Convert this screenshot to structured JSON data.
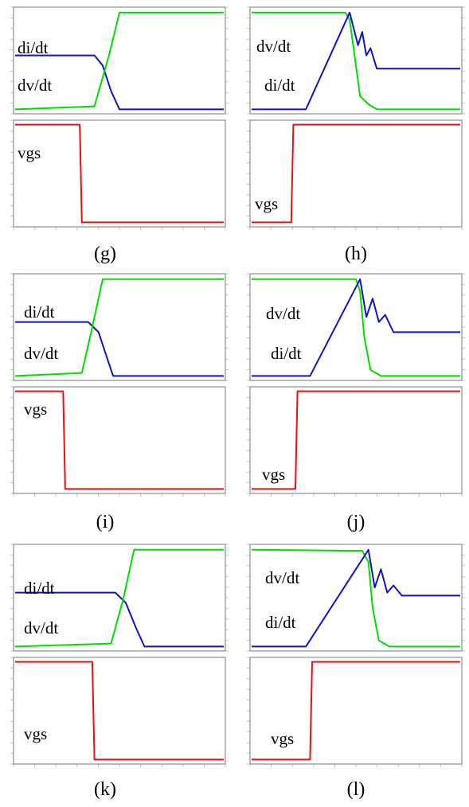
{
  "colors": {
    "green": "#00dd00",
    "blue": "#1111cc",
    "red": "#e81010",
    "frame": "#777777",
    "grid_text": "#9a9a9a"
  },
  "panels": [
    {
      "id": "g",
      "label": "(g)",
      "labels": {
        "a": "di/dt",
        "b": "dv/dt",
        "vgs": "vgs"
      }
    },
    {
      "id": "h",
      "label": "(h)",
      "labels": {
        "a": "dv/dt",
        "b": "di/dt",
        "vgs": "vgs"
      }
    },
    {
      "id": "i",
      "label": "(i)",
      "labels": {
        "a": "di/dt",
        "b": "dv/dt",
        "vgs": "vgs"
      }
    },
    {
      "id": "j",
      "label": "(j)",
      "labels": {
        "a": "dv/dt",
        "b": "di/dt",
        "vgs": "vgs"
      }
    },
    {
      "id": "k",
      "label": "(k)",
      "labels": {
        "a": "di/dt",
        "b": "dv/dt",
        "vgs": "vgs"
      }
    },
    {
      "id": "l",
      "label": "(l)",
      "labels": {
        "a": "dv/dt",
        "b": "di/dt",
        "vgs": "vgs"
      }
    }
  ],
  "chart_data": [
    {
      "type": "line",
      "panel": "g",
      "xlim": [
        0,
        1
      ],
      "ylim": [
        0,
        1
      ],
      "series": [
        {
          "name": "di/dt",
          "x": [
            0,
            0.38,
            0.42,
            0.46,
            0.5,
            1
          ],
          "y": [
            0.55,
            0.55,
            0.45,
            0.2,
            0.02,
            0.02
          ]
        },
        {
          "name": "dv/dt",
          "x": [
            0,
            0.38,
            0.45,
            0.5,
            1
          ],
          "y": [
            0.02,
            0.05,
            0.55,
            0.97,
            0.97
          ]
        },
        {
          "name": "vgs",
          "x": [
            0,
            0.31,
            0.32,
            1
          ],
          "y": [
            0.98,
            0.98,
            0.02,
            0.02
          ]
        }
      ]
    },
    {
      "type": "line",
      "panel": "h",
      "xlim": [
        0,
        1
      ],
      "ylim": [
        0,
        1
      ],
      "series": [
        {
          "name": "dv/dt",
          "x": [
            0,
            0.45,
            0.47,
            0.49,
            0.52,
            0.56,
            0.6,
            1
          ],
          "y": [
            0.97,
            0.97,
            0.9,
            0.6,
            0.15,
            0.07,
            0.02,
            0.02
          ]
        },
        {
          "name": "di/dt",
          "x": [
            0,
            0.26,
            0.47,
            0.51,
            0.53,
            0.55,
            0.57,
            0.6,
            1
          ],
          "y": [
            0.02,
            0.02,
            0.97,
            0.65,
            0.78,
            0.55,
            0.62,
            0.42,
            0.42
          ]
        },
        {
          "name": "vgs",
          "x": [
            0,
            0.19,
            0.2,
            1
          ],
          "y": [
            0.02,
            0.02,
            0.98,
            0.98
          ]
        }
      ]
    },
    {
      "type": "line",
      "panel": "i",
      "xlim": [
        0,
        1
      ],
      "ylim": [
        0,
        1
      ],
      "series": [
        {
          "name": "di/dt",
          "x": [
            0,
            0.35,
            0.4,
            0.44,
            0.47,
            1
          ],
          "y": [
            0.55,
            0.55,
            0.45,
            0.2,
            0.02,
            0.02
          ]
        },
        {
          "name": "dv/dt",
          "x": [
            0,
            0.32,
            0.37,
            0.42,
            0.45,
            1
          ],
          "y": [
            0.02,
            0.05,
            0.5,
            0.97,
            0.97,
            0.97
          ]
        },
        {
          "name": "vgs",
          "x": [
            0,
            0.23,
            0.24,
            1
          ],
          "y": [
            0.98,
            0.98,
            0.02,
            0.02
          ]
        }
      ]
    },
    {
      "type": "line",
      "panel": "j",
      "xlim": [
        0,
        1
      ],
      "ylim": [
        0,
        1
      ],
      "series": [
        {
          "name": "dv/dt",
          "x": [
            0,
            0.5,
            0.52,
            0.54,
            0.57,
            0.62,
            1
          ],
          "y": [
            0.97,
            0.97,
            0.85,
            0.4,
            0.08,
            0.02,
            0.02
          ]
        },
        {
          "name": "di/dt",
          "x": [
            0,
            0.28,
            0.52,
            0.55,
            0.58,
            0.61,
            0.64,
            0.68,
            1
          ],
          "y": [
            0.02,
            0.02,
            0.97,
            0.6,
            0.78,
            0.55,
            0.62,
            0.45,
            0.45
          ]
        },
        {
          "name": "vgs",
          "x": [
            0,
            0.21,
            0.22,
            1
          ],
          "y": [
            0.02,
            0.02,
            0.98,
            0.98
          ]
        }
      ]
    },
    {
      "type": "line",
      "panel": "k",
      "xlim": [
        0,
        1
      ],
      "ylim": [
        0,
        1
      ],
      "series": [
        {
          "name": "di/dt",
          "x": [
            0,
            0.48,
            0.53,
            0.58,
            0.62,
            1
          ],
          "y": [
            0.55,
            0.55,
            0.45,
            0.2,
            0.02,
            0.02
          ]
        },
        {
          "name": "dv/dt",
          "x": [
            0,
            0.46,
            0.52,
            0.57,
            0.6,
            1
          ],
          "y": [
            0.02,
            0.05,
            0.5,
            0.97,
            0.97,
            0.97
          ]
        },
        {
          "name": "vgs",
          "x": [
            0,
            0.37,
            0.38,
            1
          ],
          "y": [
            0.98,
            0.98,
            0.02,
            0.02
          ]
        }
      ]
    },
    {
      "type": "line",
      "panel": "l",
      "xlim": [
        0,
        1
      ],
      "ylim": [
        0,
        1
      ],
      "series": [
        {
          "name": "dv/dt",
          "x": [
            0,
            0.53,
            0.56,
            0.58,
            0.61,
            0.66,
            1
          ],
          "y": [
            0.97,
            0.96,
            0.85,
            0.4,
            0.08,
            0.02,
            0.02
          ]
        },
        {
          "name": "di/dt",
          "x": [
            0,
            0.26,
            0.56,
            0.59,
            0.62,
            0.65,
            0.68,
            0.72,
            1
          ],
          "y": [
            0.02,
            0.02,
            0.97,
            0.6,
            0.78,
            0.55,
            0.62,
            0.52,
            0.52
          ]
        },
        {
          "name": "vgs",
          "x": [
            0,
            0.28,
            0.29,
            1
          ],
          "y": [
            0.02,
            0.02,
            0.98,
            0.98
          ]
        }
      ]
    }
  ]
}
